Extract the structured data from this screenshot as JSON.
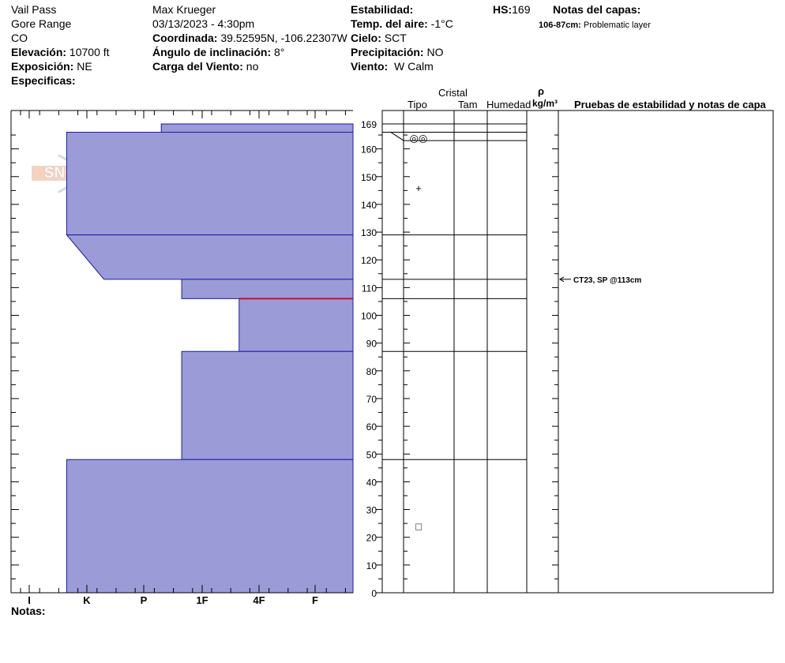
{
  "header": {
    "location": "Vail Pass",
    "range": "Gore Range",
    "state": "CO",
    "elevation_label": "Elevación:",
    "elevation_value": "10700 ft",
    "aspect_label": "Exposición:",
    "aspect_value": "NE",
    "specifics_label": "Especificas:",
    "observer": "Max Krueger",
    "datetime": "03/13/2023 - 4:30pm",
    "coord_label": "Coordinada:",
    "coord_value": "39.52595N, -106.22307W",
    "slope_label": "Ángulo de inclinación:",
    "slope_value": "8°",
    "wind_load_label": "Carga del Viento:",
    "wind_load_value": "no",
    "stability_label": "Estabilidad:",
    "air_temp_label": "Temp. del aire:",
    "air_temp_value": "-1°C",
    "sky_label": "Cielo:",
    "sky_value": "SCT",
    "precip_label": "Precipitación:",
    "precip_value": "NO",
    "wind_label": "Viento:",
    "wind_value": "W Calm",
    "hs_label": "HS:",
    "hs_value": "169",
    "layer_notes_label": "Notas del capas:",
    "layer_note_range": "106-87cm:",
    "layer_note_text": "Problematic layer"
  },
  "columns": {
    "crystal": "Cristal",
    "type": "Tipo",
    "size": "Tam",
    "moisture": "Humedad",
    "rho": "ρ",
    "density_unit": "kg/m³",
    "tests": "Pruebas de estabilidad y notas de capa"
  },
  "logo_text": "SNOW PILOT",
  "notes_label": "Notas:",
  "stability_test": {
    "text": "CT23, SP @113cm",
    "height_cm": 113
  },
  "colors": {
    "profile_fill": "#9b9bd8",
    "profile_stroke": "#1b1bb0",
    "weak_layer": "#c0142c"
  },
  "chart_data": {
    "type": "area",
    "hardness_categories": [
      "I",
      "K",
      "P",
      "1F",
      "4F",
      "F"
    ],
    "ylim": [
      0,
      169
    ],
    "yticks": [
      0,
      10,
      20,
      30,
      40,
      50,
      60,
      70,
      80,
      90,
      100,
      110,
      120,
      130,
      140,
      150,
      160,
      169
    ],
    "layers": [
      {
        "top": 169,
        "bottom": 166,
        "hardness_top": 2.3,
        "hardness_bottom": 2.3
      },
      {
        "top": 166,
        "bottom": 129,
        "hardness_top": 0.65,
        "hardness_bottom": 0.65
      },
      {
        "top": 129,
        "bottom": 113,
        "hardness_top": 0.65,
        "hardness_bottom": 1.3
      },
      {
        "top": 113,
        "bottom": 106,
        "hardness_top": 2.65,
        "hardness_bottom": 2.65
      },
      {
        "top": 106,
        "bottom": 87,
        "hardness_top": 3.65,
        "hardness_bottom": 3.65
      },
      {
        "top": 87,
        "bottom": 48,
        "hardness_top": 2.65,
        "hardness_bottom": 2.65
      },
      {
        "top": 48,
        "bottom": 0,
        "hardness_top": 0.65,
        "hardness_bottom": 0.65
      }
    ],
    "weak_layer_cm": 106,
    "layer_boundaries": [
      169,
      166,
      129,
      113,
      106,
      87,
      48,
      0
    ],
    "crystal_marks": [
      {
        "height_cm": 164,
        "symbol": "◎◎"
      },
      {
        "height_cm": 146,
        "symbol": "+"
      },
      {
        "height_cm": 24,
        "symbol": "□"
      }
    ]
  }
}
